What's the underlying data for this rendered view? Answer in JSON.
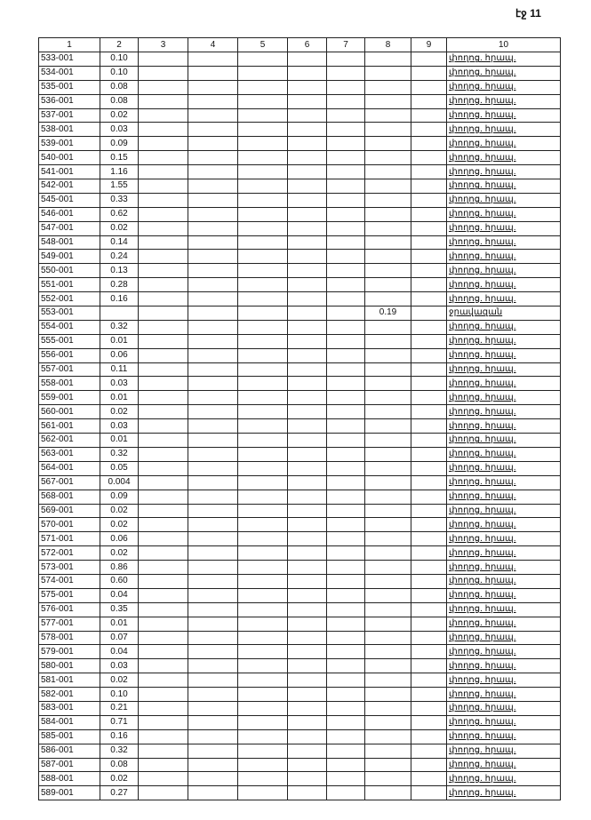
{
  "page_number": "էջ 11",
  "headers": [
    "1",
    "2",
    "3",
    "4",
    "5",
    "6",
    "7",
    "8",
    "9",
    "10"
  ],
  "rows": [
    [
      "533-001",
      "0.10",
      "",
      "",
      "",
      "",
      "",
      "",
      "",
      "փողոց. հրապ."
    ],
    [
      "534-001",
      "0.10",
      "",
      "",
      "",
      "",
      "",
      "",
      "",
      "փողոց. հրապ."
    ],
    [
      "535-001",
      "0.08",
      "",
      "",
      "",
      "",
      "",
      "",
      "",
      "փողոց. հրապ."
    ],
    [
      "536-001",
      "0.08",
      "",
      "",
      "",
      "",
      "",
      "",
      "",
      "փողոց. հրապ."
    ],
    [
      "537-001",
      "0.02",
      "",
      "",
      "",
      "",
      "",
      "",
      "",
      "փողոց. հրապ."
    ],
    [
      "538-001",
      "0.03",
      "",
      "",
      "",
      "",
      "",
      "",
      "",
      "փողոց. հրապ."
    ],
    [
      "539-001",
      "0.09",
      "",
      "",
      "",
      "",
      "",
      "",
      "",
      "փողոց. հրապ."
    ],
    [
      "540-001",
      "0.15",
      "",
      "",
      "",
      "",
      "",
      "",
      "",
      "փողոց. հրապ."
    ],
    [
      "541-001",
      "1.16",
      "",
      "",
      "",
      "",
      "",
      "",
      "",
      "փողոց. հրապ."
    ],
    [
      "542-001",
      "1.55",
      "",
      "",
      "",
      "",
      "",
      "",
      "",
      "փողոց. հրապ."
    ],
    [
      "545-001",
      "0.33",
      "",
      "",
      "",
      "",
      "",
      "",
      "",
      "փողոց. հրապ."
    ],
    [
      "546-001",
      "0.62",
      "",
      "",
      "",
      "",
      "",
      "",
      "",
      "փողոց. հրապ."
    ],
    [
      "547-001",
      "0.02",
      "",
      "",
      "",
      "",
      "",
      "",
      "",
      "փողոց. հրապ."
    ],
    [
      "548-001",
      "0.14",
      "",
      "",
      "",
      "",
      "",
      "",
      "",
      "փողոց. հրապ."
    ],
    [
      "549-001",
      "0.24",
      "",
      "",
      "",
      "",
      "",
      "",
      "",
      "փողոց. հրապ."
    ],
    [
      "550-001",
      "0.13",
      "",
      "",
      "",
      "",
      "",
      "",
      "",
      "փողոց. հրապ."
    ],
    [
      "551-001",
      "0.28",
      "",
      "",
      "",
      "",
      "",
      "",
      "",
      "փողոց. հրապ."
    ],
    [
      "552-001",
      "0.16",
      "",
      "",
      "",
      "",
      "",
      "",
      "",
      "փողոց. հրապ."
    ],
    [
      "553-001",
      "",
      "",
      "",
      "",
      "",
      "",
      "0.19",
      "",
      "ջրավազան"
    ],
    [
      "554-001",
      "0.32",
      "",
      "",
      "",
      "",
      "",
      "",
      "",
      "փողոց. հրապ."
    ],
    [
      "555-001",
      "0.01",
      "",
      "",
      "",
      "",
      "",
      "",
      "",
      "փողոց. հրապ."
    ],
    [
      "556-001",
      "0.06",
      "",
      "",
      "",
      "",
      "",
      "",
      "",
      "փողոց. հրապ."
    ],
    [
      "557-001",
      "0.11",
      "",
      "",
      "",
      "",
      "",
      "",
      "",
      "փողոց. հրապ."
    ],
    [
      "558-001",
      "0.03",
      "",
      "",
      "",
      "",
      "",
      "",
      "",
      "փողոց. հրապ."
    ],
    [
      "559-001",
      "0.01",
      "",
      "",
      "",
      "",
      "",
      "",
      "",
      "փողոց. հրապ."
    ],
    [
      "560-001",
      "0.02",
      "",
      "",
      "",
      "",
      "",
      "",
      "",
      "փողոց. հրապ."
    ],
    [
      "561-001",
      "0.03",
      "",
      "",
      "",
      "",
      "",
      "",
      "",
      "փողոց. հրապ."
    ],
    [
      "562-001",
      "0.01",
      "",
      "",
      "",
      "",
      "",
      "",
      "",
      "փողոց. հրապ."
    ],
    [
      "563-001",
      "0.32",
      "",
      "",
      "",
      "",
      "",
      "",
      "",
      "փողոց. հրապ."
    ],
    [
      "564-001",
      "0.05",
      "",
      "",
      "",
      "",
      "",
      "",
      "",
      "փողոց. հրապ."
    ],
    [
      "567-001",
      "0.004",
      "",
      "",
      "",
      "",
      "",
      "",
      "",
      "փողոց. հրապ."
    ],
    [
      "568-001",
      "0.09",
      "",
      "",
      "",
      "",
      "",
      "",
      "",
      "փողոց. հրապ."
    ],
    [
      "569-001",
      "0.02",
      "",
      "",
      "",
      "",
      "",
      "",
      "",
      "փողոց. հրապ."
    ],
    [
      "570-001",
      "0.02",
      "",
      "",
      "",
      "",
      "",
      "",
      "",
      "փողոց. հրապ."
    ],
    [
      "571-001",
      "0.06",
      "",
      "",
      "",
      "",
      "",
      "",
      "",
      "փողոց. հրապ."
    ],
    [
      "572-001",
      "0.02",
      "",
      "",
      "",
      "",
      "",
      "",
      "",
      "փողոց. հրապ."
    ],
    [
      "573-001",
      "0.86",
      "",
      "",
      "",
      "",
      "",
      "",
      "",
      "փողոց. հրապ."
    ],
    [
      "574-001",
      "0.60",
      "",
      "",
      "",
      "",
      "",
      "",
      "",
      "փողոց. հրապ."
    ],
    [
      "575-001",
      "0.04",
      "",
      "",
      "",
      "",
      "",
      "",
      "",
      "փողոց. հրապ."
    ],
    [
      "576-001",
      "0.35",
      "",
      "",
      "",
      "",
      "",
      "",
      "",
      "փողոց. հրապ."
    ],
    [
      "577-001",
      "0.01",
      "",
      "",
      "",
      "",
      "",
      "",
      "",
      "փողոց. հրապ."
    ],
    [
      "578-001",
      "0.07",
      "",
      "",
      "",
      "",
      "",
      "",
      "",
      "փողոց. հրապ."
    ],
    [
      "579-001",
      "0.04",
      "",
      "",
      "",
      "",
      "",
      "",
      "",
      "փողոց. հրապ."
    ],
    [
      "580-001",
      "0.03",
      "",
      "",
      "",
      "",
      "",
      "",
      "",
      "փողոց. հրապ."
    ],
    [
      "581-001",
      "0.02",
      "",
      "",
      "",
      "",
      "",
      "",
      "",
      "փողոց. հրապ."
    ],
    [
      "582-001",
      "0.10",
      "",
      "",
      "",
      "",
      "",
      "",
      "",
      "փողոց. հրապ."
    ],
    [
      "583-001",
      "0.21",
      "",
      "",
      "",
      "",
      "",
      "",
      "",
      "փողոց. հրապ."
    ],
    [
      "584-001",
      "0.71",
      "",
      "",
      "",
      "",
      "",
      "",
      "",
      "փողոց. հրապ."
    ],
    [
      "585-001",
      "0.16",
      "",
      "",
      "",
      "",
      "",
      "",
      "",
      "փողոց. հրապ."
    ],
    [
      "586-001",
      "0.32",
      "",
      "",
      "",
      "",
      "",
      "",
      "",
      "փողոց. հրապ."
    ],
    [
      "587-001",
      "0.08",
      "",
      "",
      "",
      "",
      "",
      "",
      "",
      "փողոց. հրապ."
    ],
    [
      "588-001",
      "0.02",
      "",
      "",
      "",
      "",
      "",
      "",
      "",
      "փողոց. հրապ."
    ],
    [
      "589-001",
      "0.27",
      "",
      "",
      "",
      "",
      "",
      "",
      "",
      "փողոց. հրապ."
    ]
  ]
}
